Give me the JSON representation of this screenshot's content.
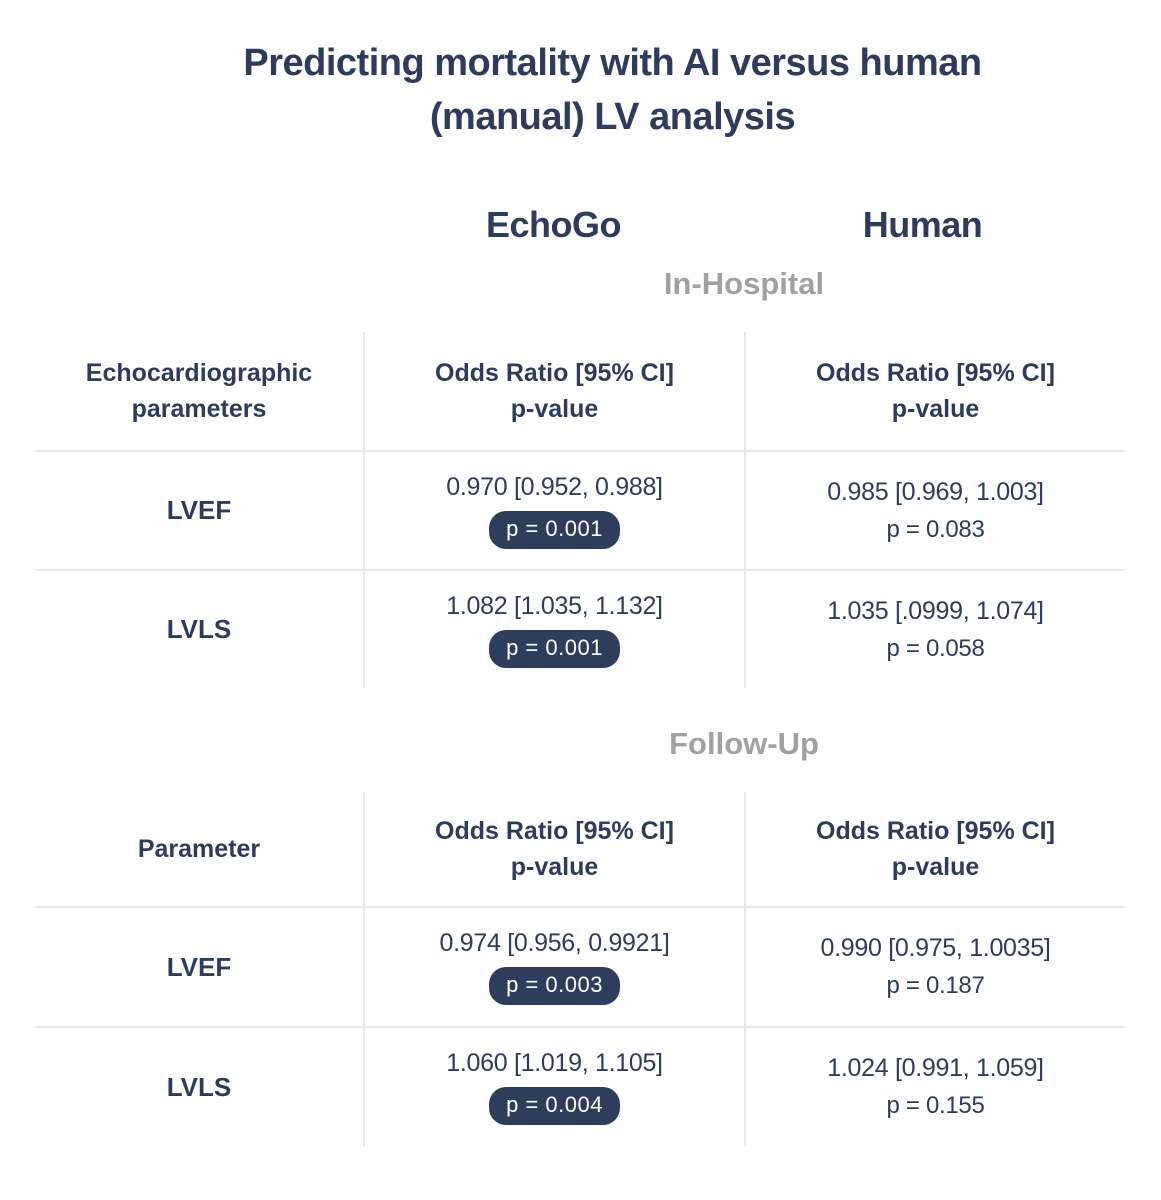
{
  "colors": {
    "navy": "#2d3c5e",
    "badge_bg": "#2e3d5c",
    "badge_text": "#ffffff",
    "section_gray": "#a1a1a1",
    "grid_line": "#e9e9e9",
    "background": "#ffffff"
  },
  "title": {
    "line1": "Predicting mortality with AI versus human",
    "line2": "(manual) LV analysis"
  },
  "group_headers": {
    "echogo": "EchoGo",
    "human": "Human"
  },
  "sections": [
    {
      "label": "In-Hospital",
      "param_header": "Echocardiographic\nparameters",
      "value_header": "Odds Ratio [95% CI]\np-value",
      "rows": [
        {
          "param": "LVEF",
          "echogo": {
            "or": "0.970 [0.952, 0.988]",
            "p": "p = 0.001"
          },
          "human": {
            "or": "0.985 [0.969, 1.003]",
            "p": "p = 0.083"
          }
        },
        {
          "param": "LVLS",
          "echogo": {
            "or": "1.082 [1.035, 1.132]",
            "p": "p = 0.001"
          },
          "human": {
            "or": "1.035 [.0999, 1.074]",
            "p": "p = 0.058"
          }
        }
      ]
    },
    {
      "label": "Follow-Up",
      "param_header": "Parameter",
      "value_header": "Odds Ratio [95% CI]\np-value",
      "rows": [
        {
          "param": "LVEF",
          "echogo": {
            "or": "0.974 [0.956, 0.9921]",
            "p": "p = 0.003"
          },
          "human": {
            "or": "0.990 [0.975, 1.0035]",
            "p": "p = 0.187"
          }
        },
        {
          "param": "LVLS",
          "echogo": {
            "or": "1.060 [1.019, 1.105]",
            "p": "p = 0.004"
          },
          "human": {
            "or": "1.024 [0.991, 1.059]",
            "p": "p = 0.155"
          }
        }
      ]
    }
  ],
  "chart_data": {
    "type": "table",
    "title": "Predicting mortality with AI versus human (manual) LV analysis",
    "groups": [
      "EchoGo",
      "Human"
    ],
    "value_format": "Odds Ratio [95% CI], p-value",
    "sections": [
      {
        "name": "In-Hospital",
        "parameter_column_label": "Echocardiographic parameters",
        "rows": [
          {
            "parameter": "LVEF",
            "EchoGo": {
              "odds_ratio": 0.97,
              "ci_95": [
                0.952,
                0.988
              ],
              "p_value": 0.001,
              "highlighted": true
            },
            "Human": {
              "odds_ratio": 0.985,
              "ci_95": [
                0.969,
                1.003
              ],
              "p_value": 0.083,
              "highlighted": false
            }
          },
          {
            "parameter": "LVLS",
            "EchoGo": {
              "odds_ratio": 1.082,
              "ci_95": [
                1.035,
                1.132
              ],
              "p_value": 0.001,
              "highlighted": true
            },
            "Human": {
              "odds_ratio": 1.035,
              "ci_95": [
                0.0999,
                1.074
              ],
              "p_value": 0.058,
              "highlighted": false
            }
          }
        ]
      },
      {
        "name": "Follow-Up",
        "parameter_column_label": "Parameter",
        "rows": [
          {
            "parameter": "LVEF",
            "EchoGo": {
              "odds_ratio": 0.974,
              "ci_95": [
                0.956,
                0.9921
              ],
              "p_value": 0.003,
              "highlighted": true
            },
            "Human": {
              "odds_ratio": 0.99,
              "ci_95": [
                0.975,
                1.0035
              ],
              "p_value": 0.187,
              "highlighted": false
            }
          },
          {
            "parameter": "LVLS",
            "EchoGo": {
              "odds_ratio": 1.06,
              "ci_95": [
                1.019,
                1.105
              ],
              "p_value": 0.004,
              "highlighted": true
            },
            "Human": {
              "odds_ratio": 1.024,
              "ci_95": [
                0.991,
                1.059
              ],
              "p_value": 0.155,
              "highlighted": false
            }
          }
        ]
      }
    ]
  }
}
